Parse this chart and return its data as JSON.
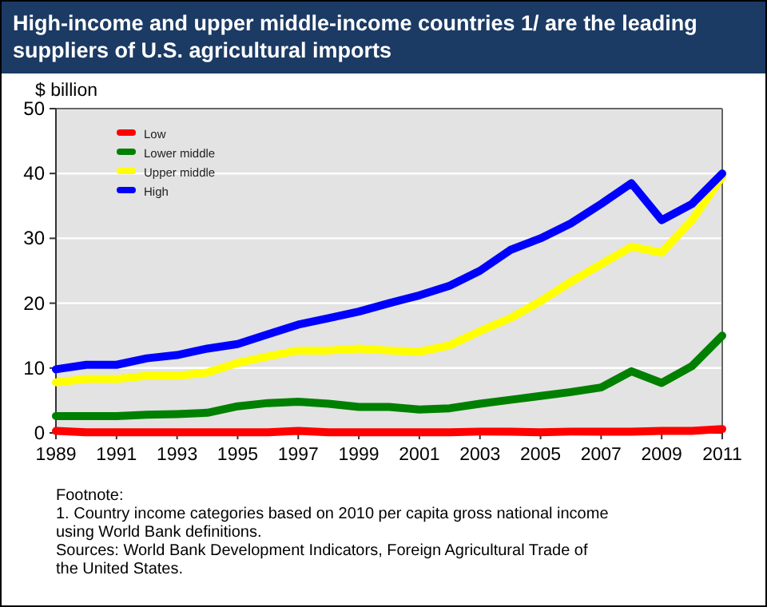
{
  "chart_data": {
    "type": "line",
    "title": "High-income and upper middle-income countries 1/ are the leading suppliers of U.S. agricultural imports",
    "ylabel": "$ billion",
    "x": [
      1989,
      1990,
      1991,
      1992,
      1993,
      1994,
      1995,
      1996,
      1997,
      1998,
      1999,
      2000,
      2001,
      2002,
      2003,
      2004,
      2005,
      2006,
      2007,
      2008,
      2009,
      2010,
      2011
    ],
    "series": [
      {
        "name": "Low",
        "color": "#ff0000",
        "values": [
          0.3,
          0.1,
          0.1,
          0.1,
          0.1,
          0.1,
          0.1,
          0.1,
          0.3,
          0.1,
          0.1,
          0.1,
          0.1,
          0.1,
          0.2,
          0.2,
          0.1,
          0.2,
          0.2,
          0.2,
          0.3,
          0.3,
          0.6
        ]
      },
      {
        "name": "Lower middle",
        "color": "#008000",
        "values": [
          2.6,
          2.6,
          2.6,
          2.8,
          2.9,
          3.1,
          4.1,
          4.6,
          4.8,
          4.5,
          4,
          4,
          3.6,
          3.8,
          4.5,
          5.1,
          5.7,
          6.3,
          7,
          9.5,
          7.7,
          10.3,
          15
        ]
      },
      {
        "name": "Upper middle",
        "color": "#ffff00",
        "values": [
          7.8,
          8.3,
          8.3,
          8.8,
          8.8,
          9.3,
          10.8,
          11.8,
          12.7,
          12.7,
          13,
          12.7,
          12.5,
          13.5,
          15.7,
          17.7,
          20.3,
          23.3,
          26,
          28.7,
          27.8,
          32.8,
          39.5
        ]
      },
      {
        "name": "High",
        "color": "#0000ff",
        "values": [
          9.8,
          10.5,
          10.5,
          11.5,
          12,
          13,
          13.7,
          15.2,
          16.7,
          17.7,
          18.7,
          20,
          21.2,
          22.7,
          25,
          28.2,
          30,
          32.3,
          35.3,
          38.5,
          32.8,
          35.3,
          40
        ]
      }
    ],
    "xlim": [
      1989,
      2011
    ],
    "xticks": [
      1989,
      1991,
      1993,
      1995,
      1997,
      1999,
      2001,
      2003,
      2005,
      2007,
      2009,
      2011
    ],
    "ylim": [
      0,
      50
    ],
    "yticks": [
      0,
      10,
      20,
      30,
      40,
      50
    ],
    "grid": "y",
    "legend": "top left",
    "marker": "none",
    "line_style": "solid",
    "annotations": [
      "Footnote:",
      "1. Country income categories based on 2010 per capita gross national income using World Bank definitions.",
      "Sources: World Bank Development Indicators, Foreign Agricultural Trade of the United States."
    ]
  }
}
